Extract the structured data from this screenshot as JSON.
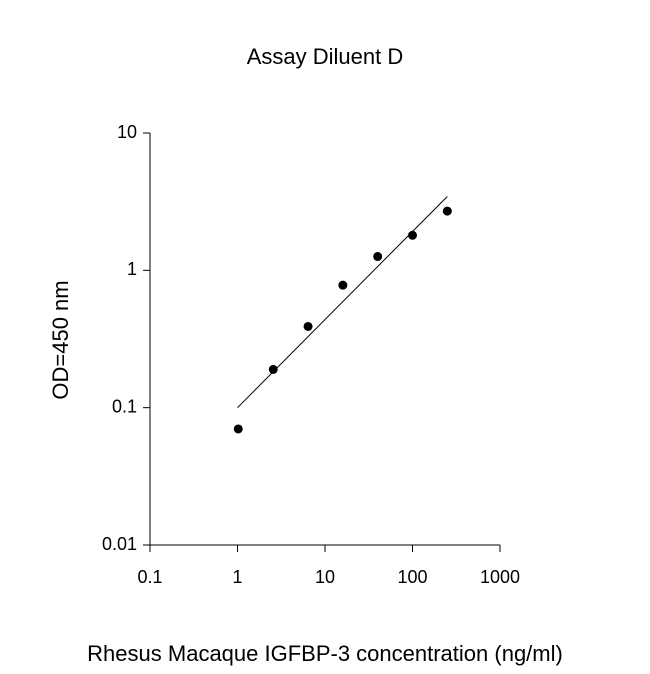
{
  "chart_data": {
    "type": "scatter",
    "title": "Assay Diluent D",
    "x_label": "Rhesus Macaque IGFBP-3 concentration (ng/ml)",
    "y_label": "OD=450 nm",
    "x_scale": "log",
    "y_scale": "log",
    "xlim": [
      0.1,
      1000
    ],
    "ylim": [
      0.01,
      10
    ],
    "xticks": [
      0.1,
      1,
      10,
      100,
      1000
    ],
    "yticks": [
      0.01,
      0.1,
      1,
      10
    ],
    "series": [
      {
        "color": "#000000",
        "x": [
          1.02,
          2.56,
          6.4,
          16,
          40,
          100,
          250
        ],
        "values": [
          0.07,
          0.19,
          0.39,
          0.78,
          1.26,
          1.8,
          2.7
        ]
      }
    ],
    "trend": {
      "color": "#000000",
      "x": [
        1,
        250
      ],
      "values": [
        0.1,
        3.45
      ]
    }
  }
}
